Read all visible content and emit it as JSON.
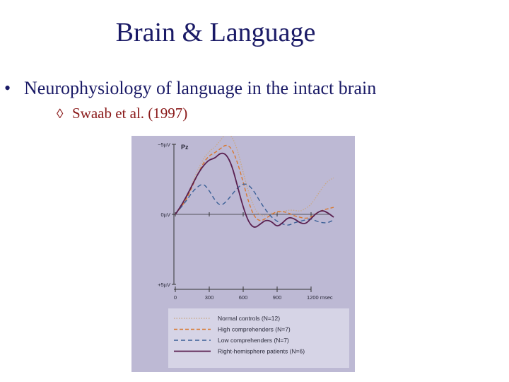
{
  "slide": {
    "title": "Brain & Language",
    "bullet": "Neurophysiology of language in the intact brain",
    "bullet_marker": "•",
    "sub_bullet": "Swaab et al. (1997)",
    "sub_bullet_marker": "◊"
  },
  "colors": {
    "title": "#1a1a66",
    "sub_bullet": "#8a1a1a",
    "figure_bg": "#bdb9d4",
    "legend_bg": "#d6d4e6"
  },
  "chart_data": {
    "type": "line",
    "title": "Pz",
    "y_tick_labels": [
      "−5µV",
      "0µV",
      "+5µV"
    ],
    "y_ticks": [
      -5,
      0,
      5
    ],
    "ylim": [
      -5,
      5
    ],
    "y_inverted": true,
    "x_tick_labels": [
      "0",
      "300",
      "600",
      "900",
      "1200 msec"
    ],
    "x_ticks": [
      0,
      300,
      600,
      900,
      1200
    ],
    "xlim": [
      0,
      1400
    ],
    "grid": false,
    "legend_position": "bottom-right",
    "series": [
      {
        "name": "Normal controls (N=12)",
        "color": "#c9a98a",
        "dash": "1.5,2",
        "x": [
          0,
          50,
          100,
          150,
          200,
          250,
          300,
          350,
          400,
          450,
          500,
          550,
          600,
          650,
          700,
          750,
          800,
          850,
          900,
          950,
          1000,
          1050,
          1100,
          1150,
          1200,
          1250,
          1300,
          1350,
          1400
        ],
        "y": [
          0,
          -0.5,
          -1.2,
          -2.2,
          -3.2,
          -4.0,
          -4.5,
          -4.8,
          -5.3,
          -5.8,
          -5.6,
          -4.6,
          -3.0,
          -1.5,
          -0.4,
          0.1,
          0.1,
          -0.1,
          -0.1,
          -0.2,
          -0.3,
          -0.3,
          -0.2,
          -0.4,
          -0.7,
          -1.3,
          -1.9,
          -2.4,
          -2.6
        ]
      },
      {
        "name": "High comprehenders (N=7)",
        "color": "#d9782f",
        "dash": "5,3",
        "x": [
          0,
          50,
          100,
          150,
          200,
          250,
          300,
          350,
          400,
          450,
          500,
          550,
          600,
          650,
          700,
          750,
          800,
          850,
          900,
          950,
          1000,
          1050,
          1100,
          1150,
          1200,
          1250,
          1300,
          1350,
          1400
        ],
        "y": [
          0,
          -0.5,
          -1.1,
          -2.0,
          -2.9,
          -3.7,
          -4.2,
          -4.4,
          -4.7,
          -5.0,
          -4.7,
          -3.7,
          -2.3,
          -0.8,
          0.2,
          0.5,
          0.3,
          0.0,
          -0.2,
          -0.2,
          -0.1,
          0.1,
          0.2,
          0.3,
          0.2,
          -0.1,
          -0.3,
          -0.4,
          -0.5
        ]
      },
      {
        "name": "Low comprehenders (N=7)",
        "color": "#3a5f96",
        "dash": "6,4",
        "x": [
          0,
          50,
          100,
          150,
          200,
          250,
          300,
          350,
          400,
          450,
          500,
          550,
          600,
          650,
          700,
          750,
          800,
          850,
          900,
          950,
          1000,
          1050,
          1100,
          1150,
          1200,
          1250,
          1300,
          1350,
          1400
        ],
        "y": [
          0,
          -0.5,
          -1.0,
          -1.6,
          -2.0,
          -2.2,
          -1.7,
          -1.0,
          -0.6,
          -0.9,
          -1.4,
          -1.9,
          -2.2,
          -2.1,
          -1.6,
          -0.9,
          -0.3,
          0.2,
          0.5,
          0.7,
          0.8,
          0.6,
          0.5,
          0.4,
          0.3,
          0.5,
          0.6,
          0.6,
          0.4
        ]
      },
      {
        "name": "Right-hemisphere patients (N=6)",
        "color": "#5a2050",
        "dash": "",
        "x": [
          0,
          50,
          100,
          150,
          200,
          250,
          300,
          350,
          400,
          450,
          500,
          550,
          600,
          650,
          700,
          750,
          800,
          850,
          900,
          950,
          1000,
          1050,
          1100,
          1150,
          1200,
          1250,
          1300,
          1350,
          1400
        ],
        "y": [
          0,
          -0.6,
          -1.3,
          -2.1,
          -2.9,
          -3.5,
          -3.9,
          -4.0,
          -4.4,
          -4.3,
          -3.5,
          -2.0,
          -0.5,
          0.6,
          1.0,
          0.7,
          0.4,
          0.5,
          0.9,
          0.6,
          0.2,
          0.3,
          0.6,
          0.7,
          0.3,
          -0.1,
          -0.3,
          -0.1,
          0.2
        ]
      }
    ]
  }
}
